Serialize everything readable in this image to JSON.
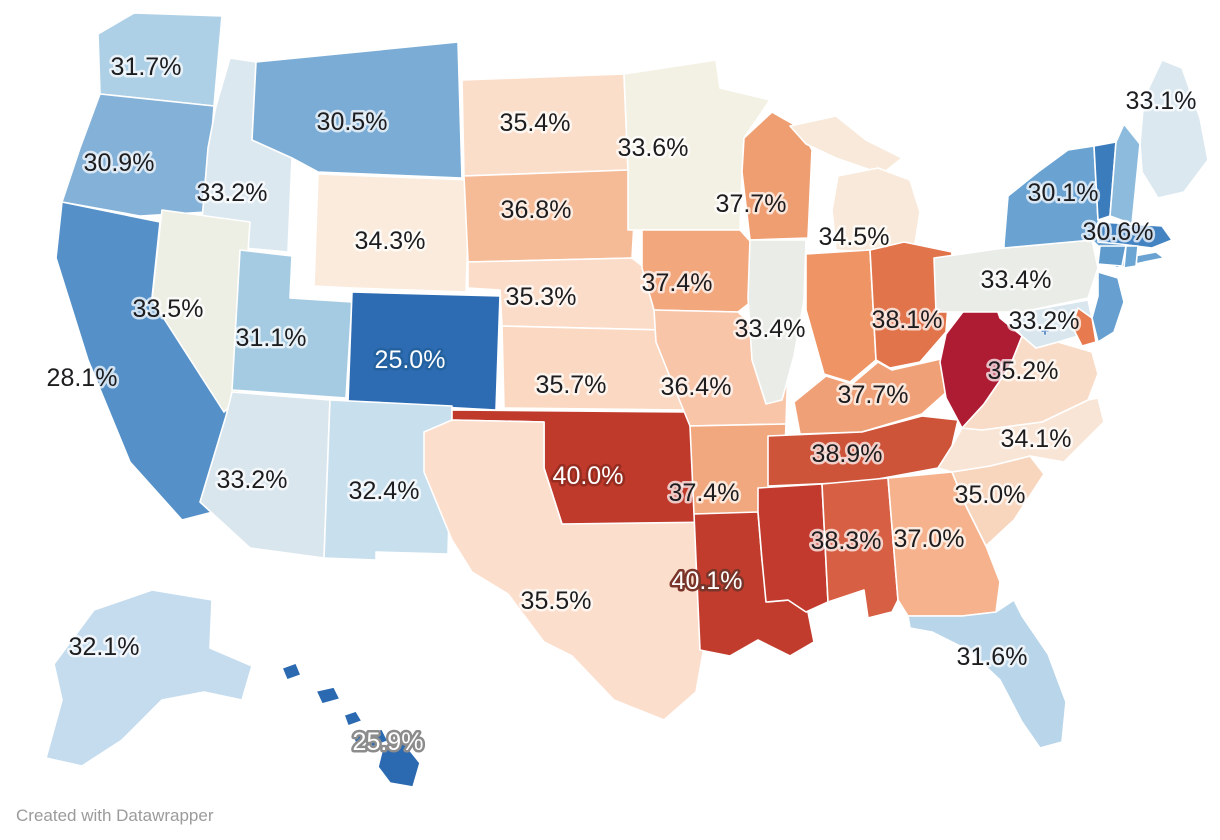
{
  "footer": {
    "credit": "Created with Datawrapper",
    "text_color": "#9b9b9b"
  },
  "map": {
    "background": "#ffffff",
    "state_border_color": "#ffffff",
    "label_colors": {
      "dark": "#1d1d1f",
      "white": "#ffffff",
      "dark_halo": "rgba(255,255,255,0.72)"
    }
  },
  "chart_data": {
    "type": "choropleth",
    "region": "United States",
    "unit": "%",
    "diverging_scale": {
      "low": "#2d6cb3",
      "mid": "#f3f1e4",
      "high": "#ae1c33"
    },
    "states": [
      {
        "id": "wa",
        "name": "Washington",
        "value": 31.7,
        "label": "31.7%",
        "fill": "#aed0e6",
        "label_style": "dark"
      },
      {
        "id": "or",
        "name": "Oregon",
        "value": 30.9,
        "label": "30.9%",
        "fill": "#83b1d8",
        "label_style": "dark"
      },
      {
        "id": "ca",
        "name": "California",
        "value": 28.1,
        "label": "28.1%",
        "fill": "#5591c8",
        "label_style": "dark"
      },
      {
        "id": "id",
        "name": "Idaho",
        "value": 33.2,
        "label": "33.2%",
        "fill": "#dce8ef",
        "label_style": "dark"
      },
      {
        "id": "nv",
        "name": "Nevada",
        "value": 33.5,
        "label": "33.5%",
        "fill": "#edeee4",
        "label_style": "dark"
      },
      {
        "id": "mt",
        "name": "Montana",
        "value": 30.5,
        "label": "30.5%",
        "fill": "#7aacd5",
        "label_style": "dark"
      },
      {
        "id": "wy",
        "name": "Wyoming",
        "value": 34.3,
        "label": "34.3%",
        "fill": "#faebdd",
        "label_style": "dark"
      },
      {
        "id": "ut",
        "name": "Utah",
        "value": 31.1,
        "label": "31.1%",
        "fill": "#a5cbe3",
        "label_style": "dark"
      },
      {
        "id": "co",
        "name": "Colorado",
        "value": 25.0,
        "label": "25.0%",
        "fill": "#2d6cb3",
        "label_style": "white",
        "halo": "#24619f"
      },
      {
        "id": "az",
        "name": "Arizona",
        "value": 33.2,
        "label": "33.2%",
        "fill": "#d9e6ed",
        "label_style": "dark"
      },
      {
        "id": "nm",
        "name": "New Mexico",
        "value": 32.4,
        "label": "32.4%",
        "fill": "#c8dfee",
        "label_style": "dark"
      },
      {
        "id": "ak",
        "name": "Alaska",
        "value": 32.1,
        "label": "32.1%",
        "fill": "#c4dcee",
        "label_style": "dark"
      },
      {
        "id": "hi",
        "name": "Hawaii",
        "value": 25.9,
        "label": "25.9%",
        "fill": "#2b6ab1",
        "label_style": "white",
        "halo": "#8c8c8c"
      },
      {
        "id": "nd",
        "name": "North Dakota",
        "value": 35.4,
        "label": "35.4%",
        "fill": "#fbdeca",
        "label_style": "dark"
      },
      {
        "id": "sd",
        "name": "South Dakota",
        "value": 36.8,
        "label": "36.8%",
        "fill": "#f5ba96",
        "label_style": "dark"
      },
      {
        "id": "ne",
        "name": "Nebraska",
        "value": 35.3,
        "label": "35.3%",
        "fill": "#fbdcc8",
        "label_style": "dark"
      },
      {
        "id": "ks",
        "name": "Kansas",
        "value": 35.7,
        "label": "35.7%",
        "fill": "#fad8c1",
        "label_style": "dark"
      },
      {
        "id": "ok",
        "name": "Oklahoma",
        "value": 40.0,
        "label": "40.0%",
        "fill": "#c03a2c",
        "label_style": "white",
        "halo": "#962d20"
      },
      {
        "id": "tx",
        "name": "Texas",
        "value": 35.5,
        "label": "35.5%",
        "fill": "#fcdecd",
        "label_style": "dark"
      },
      {
        "id": "mn",
        "name": "Minnesota",
        "value": 33.6,
        "label": "33.6%",
        "fill": "#f3f1e4",
        "label_style": "dark"
      },
      {
        "id": "ia",
        "name": "Iowa",
        "value": 37.4,
        "label": "37.4%",
        "fill": "#f2a77d",
        "label_style": "dark"
      },
      {
        "id": "mo",
        "name": "Missouri",
        "value": 36.4,
        "label": "36.4%",
        "fill": "#f8c5a8",
        "label_style": "dark"
      },
      {
        "id": "ar",
        "name": "Arkansas",
        "value": 37.4,
        "label": "37.4%",
        "fill": "#f2a87e",
        "label_style": "dark"
      },
      {
        "id": "la",
        "name": "Louisiana",
        "value": 40.1,
        "label": "40.1%",
        "fill": "#c23c2e",
        "label_style": "white",
        "halo": "#7a352a"
      },
      {
        "id": "wi",
        "name": "Wisconsin",
        "value": 37.7,
        "label": "37.7%",
        "fill": "#ef9e71",
        "label_style": "dark"
      },
      {
        "id": "il",
        "name": "Illinois",
        "value": 33.4,
        "label": "33.4%",
        "fill": "#e9ece7",
        "label_style": "dark"
      },
      {
        "id": "mi",
        "name": "Michigan",
        "value": 34.5,
        "label": "34.5%",
        "fill": "#f8e9da",
        "label_style": "dark"
      },
      {
        "id": "in",
        "name": "Indiana",
        "value": null,
        "label": null,
        "fill": "#ee9465",
        "label_style": null
      },
      {
        "id": "oh",
        "name": "Ohio",
        "value": 38.1,
        "label": "38.1%",
        "fill": "#e2744c",
        "label_style": "dark"
      },
      {
        "id": "ky",
        "name": "Kentucky",
        "value": 37.7,
        "label": "37.7%",
        "fill": "#f0a077",
        "label_style": "dark"
      },
      {
        "id": "tn",
        "name": "Tennessee",
        "value": 38.9,
        "label": "38.9%",
        "fill": "#cd5339",
        "label_style": "dark"
      },
      {
        "id": "ms",
        "name": "Mississippi",
        "value": null,
        "label": null,
        "fill": "#c13a2d",
        "label_style": null
      },
      {
        "id": "al",
        "name": "Alabama",
        "value": 38.3,
        "label": "38.3%",
        "fill": "#d75f43",
        "label_style": "dark"
      },
      {
        "id": "ga",
        "name": "Georgia",
        "value": 37.0,
        "label": "37.0%",
        "fill": "#f5b28c",
        "label_style": "dark"
      },
      {
        "id": "fl",
        "name": "Florida",
        "value": 31.6,
        "label": "31.6%",
        "fill": "#b8d5ea",
        "label_style": "dark"
      },
      {
        "id": "sc",
        "name": "South Carolina",
        "value": 35.0,
        "label": "35.0%",
        "fill": "#f8d5bd",
        "label_style": "dark"
      },
      {
        "id": "nc",
        "name": "North Carolina",
        "value": 34.1,
        "label": "34.1%",
        "fill": "#f9e5d6",
        "label_style": "dark"
      },
      {
        "id": "va",
        "name": "Virginia",
        "value": 35.2,
        "label": "35.2%",
        "fill": "#f9dcc7",
        "label_style": "dark"
      },
      {
        "id": "wv",
        "name": "West Virginia",
        "value": null,
        "label": null,
        "fill": "#ae1c33",
        "label_style": null
      },
      {
        "id": "md",
        "name": "Maryland",
        "value": 33.2,
        "label": "33.2%",
        "fill": "#d9e6ed",
        "label_style": "dark"
      },
      {
        "id": "de",
        "name": "Delaware",
        "value": null,
        "label": null,
        "fill": "#e87a50",
        "label_style": null
      },
      {
        "id": "pa",
        "name": "Pennsylvania",
        "value": 33.4,
        "label": "33.4%",
        "fill": "#e9ece7",
        "label_style": "dark"
      },
      {
        "id": "nj",
        "name": "New Jersey",
        "value": null,
        "label": null,
        "fill": "#67a0d0",
        "label_style": null
      },
      {
        "id": "ny",
        "name": "New York",
        "value": 30.1,
        "label": "30.1%",
        "fill": "#6aa3d2",
        "label_style": "dark"
      },
      {
        "id": "vt",
        "name": "Vermont",
        "value": null,
        "label": null,
        "fill": "#3b7cbd",
        "label_style": null
      },
      {
        "id": "nh",
        "name": "New Hampshire",
        "value": null,
        "label": null,
        "fill": "#8cbbdd",
        "label_style": null
      },
      {
        "id": "me",
        "name": "Maine",
        "value": 33.1,
        "label": "33.1%",
        "fill": "#dbe8ef",
        "label_style": "dark"
      },
      {
        "id": "ma",
        "name": "Massachusetts",
        "value": 30.6,
        "label": "30.6%",
        "fill": "#4383c2",
        "label_style": "dark"
      },
      {
        "id": "ct",
        "name": "Connecticut",
        "value": null,
        "label": null,
        "fill": "#5e9acc",
        "label_style": null
      },
      {
        "id": "ri",
        "name": "Rhode Island",
        "value": null,
        "label": null,
        "fill": "#6aa5d3",
        "label_style": null
      },
      {
        "id": "dc",
        "name": "District of Columbia",
        "value": null,
        "label": null,
        "fill": "#2d6cb3",
        "label_style": null
      }
    ]
  }
}
